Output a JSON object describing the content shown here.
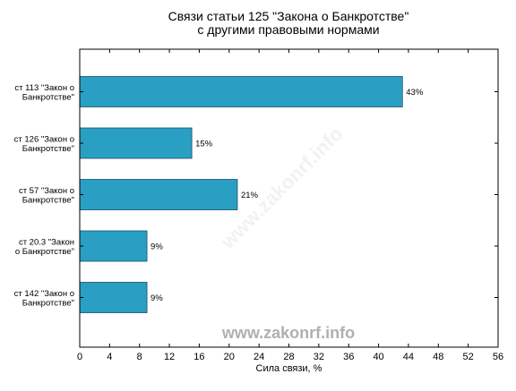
{
  "chart_data": {
    "type": "bar",
    "orientation": "horizontal",
    "title": "Связи статьи 125 \"Закона о Банкротстве\"\nс другими правовыми нормами",
    "xlabel": "Сила связи, %",
    "ylabel": "",
    "xlim": [
      0,
      56
    ],
    "xticks": [
      0,
      4,
      8,
      12,
      16,
      20,
      24,
      28,
      32,
      36,
      40,
      44,
      48,
      52,
      56
    ],
    "categories": [
      "ст 113 \"Закон о\nБанкротстве\"",
      "ст 126 \"Закон о\nБанкротстве\"",
      "ст 57 \"Закон о\nБанкротстве\"",
      "ст 20.3 \"Закон\nо Банкротстве\"",
      "ст 142 \"Закон о\nБанкротстве\""
    ],
    "values": [
      43.2,
      15.0,
      21.1,
      9.0,
      9.0
    ],
    "value_labels": [
      "43%",
      "15%",
      "21%",
      "9%",
      "9%"
    ],
    "bar_color": "#2a9fc4",
    "grid": false,
    "legend": "none"
  },
  "watermark": {
    "text": "www.zakonrf.info",
    "color": "#b0b0b0"
  }
}
